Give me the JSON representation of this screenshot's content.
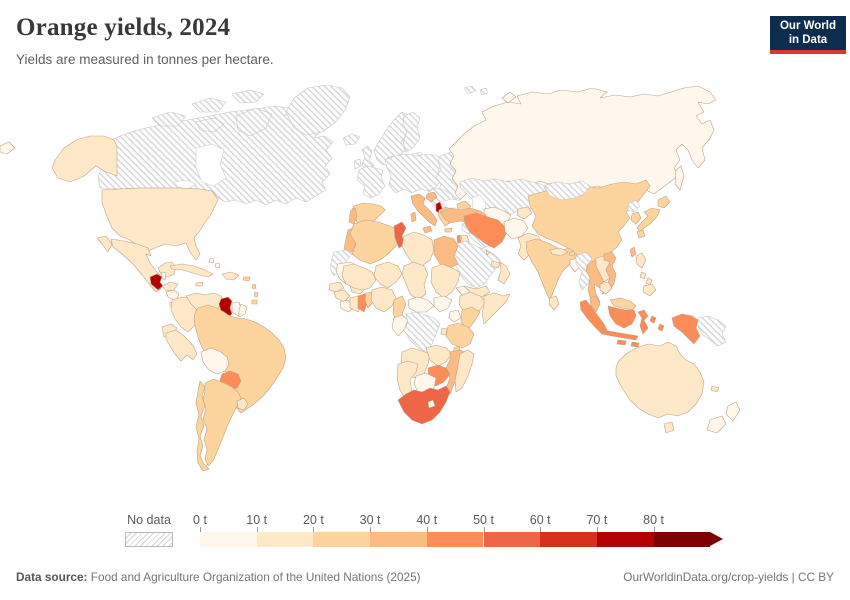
{
  "header": {
    "title": "Orange yields, 2024",
    "subtitle": "Yields are measured in tonnes per hectare."
  },
  "logo": {
    "line1": "Our World",
    "line2": "in Data",
    "bg_color": "#0d2d4e",
    "accent_color": "#e0362c"
  },
  "legend": {
    "no_data_label": "No data"
  },
  "footer": {
    "source_label": "Data source:",
    "source_text": " Food and Agriculture Organization of the United Nations (2025)",
    "link_text": "OurWorldinData.org/crop-yields",
    "license_separator": " | ",
    "license_text": "CC BY"
  },
  "chart_data": {
    "type": "choropleth-map",
    "title": "Orange yields, 2024",
    "unit": "tonnes per hectare",
    "projection": "world",
    "no_data_style": "gray-diagonal-hatch",
    "bins": [
      {
        "label": "0 t",
        "range": "0-10",
        "color": "#fff7ec"
      },
      {
        "label": "10 t",
        "range": "10-20",
        "color": "#fee8c8"
      },
      {
        "label": "20 t",
        "range": "20-30",
        "color": "#fdd49e"
      },
      {
        "label": "30 t",
        "range": "30-40",
        "color": "#fdbb84"
      },
      {
        "label": "40 t",
        "range": "40-50",
        "color": "#fc8d59"
      },
      {
        "label": "50 t",
        "range": "50-60",
        "color": "#ef6548"
      },
      {
        "label": "60 t",
        "range": "60-70",
        "color": "#d7301f"
      },
      {
        "label": "70 t",
        "range": "70-80",
        "color": "#b30000"
      },
      {
        "label": "80 t",
        "range": "80+",
        "color": "#7f0000"
      }
    ],
    "countries": [
      {
        "id": "canada",
        "bin": "no-data"
      },
      {
        "id": "hudson-bay",
        "bin": "water"
      },
      {
        "id": "great-lakes",
        "bin": "water"
      },
      {
        "id": "arctic-1",
        "bin": "no-data"
      },
      {
        "id": "arctic-2",
        "bin": "no-data"
      },
      {
        "id": "arctic-3",
        "bin": "no-data"
      },
      {
        "id": "victoria-island",
        "bin": "no-data"
      },
      {
        "id": "baffin-island",
        "bin": "no-data"
      },
      {
        "id": "greenland",
        "bin": "no-data"
      },
      {
        "id": "iceland",
        "bin": "no-data"
      },
      {
        "id": "alaska",
        "bin": 1
      },
      {
        "id": "united-states",
        "bin": 1
      },
      {
        "id": "mexico",
        "bin": 1
      },
      {
        "id": "guatemala",
        "bin": 7
      },
      {
        "id": "belize",
        "bin": 0
      },
      {
        "id": "honduras",
        "bin": 1
      },
      {
        "id": "nicaragua",
        "bin": 0
      },
      {
        "id": "costa-rica-panama",
        "bin": 0
      },
      {
        "id": "cuba",
        "bin": 1
      },
      {
        "id": "jamaica",
        "bin": 1
      },
      {
        "id": "hispaniola",
        "bin": 1
      },
      {
        "id": "puerto-rico",
        "bin": 2
      },
      {
        "id": "lesser-antilles-1",
        "bin": 2
      },
      {
        "id": "lesser-antilles-2",
        "bin": 2
      },
      {
        "id": "trinidad",
        "bin": 2
      },
      {
        "id": "bahamas-1",
        "bin": 0
      },
      {
        "id": "bahamas-2",
        "bin": 0
      },
      {
        "id": "colombia",
        "bin": 1
      },
      {
        "id": "venezuela",
        "bin": 1
      },
      {
        "id": "guyana",
        "bin": 7
      },
      {
        "id": "suriname",
        "bin": 0
      },
      {
        "id": "french-guiana",
        "bin": 0
      },
      {
        "id": "ecuador",
        "bin": 1
      },
      {
        "id": "peru",
        "bin": 1
      },
      {
        "id": "brazil",
        "bin": 2
      },
      {
        "id": "bolivia",
        "bin": 0
      },
      {
        "id": "paraguay",
        "bin": 4
      },
      {
        "id": "chile",
        "bin": 2
      },
      {
        "id": "argentina",
        "bin": 2
      },
      {
        "id": "uruguay",
        "bin": 1
      },
      {
        "id": "united-kingdom",
        "bin": "no-data"
      },
      {
        "id": "ireland",
        "bin": "no-data"
      },
      {
        "id": "norway-sweden",
        "bin": "no-data"
      },
      {
        "id": "finland",
        "bin": "no-data"
      },
      {
        "id": "denmark",
        "bin": "no-data"
      },
      {
        "id": "baltics",
        "bin": "no-data"
      },
      {
        "id": "france",
        "bin": "no-data"
      },
      {
        "id": "central-europe",
        "bin": "no-data"
      },
      {
        "id": "ukraine-belarus",
        "bin": "no-data"
      },
      {
        "id": "balkans",
        "bin": "no-data"
      },
      {
        "id": "spain",
        "bin": 2
      },
      {
        "id": "portugal",
        "bin": 3
      },
      {
        "id": "italy",
        "bin": 3
      },
      {
        "id": "sicily",
        "bin": 3
      },
      {
        "id": "sardinia",
        "bin": 3
      },
      {
        "id": "croatia",
        "bin": 3
      },
      {
        "id": "albania",
        "bin": 7
      },
      {
        "id": "greece",
        "bin": 2
      },
      {
        "id": "crete",
        "bin": 2
      },
      {
        "id": "svalbard-1",
        "bin": "no-data"
      },
      {
        "id": "svalbard-2",
        "bin": "no-data"
      },
      {
        "id": "russia",
        "bin": 0
      },
      {
        "id": "siberia-left-fragment",
        "bin": 0
      },
      {
        "id": "novaya-zemlya",
        "bin": 0
      },
      {
        "id": "sakhalin",
        "bin": 0
      },
      {
        "id": "kazakhstan-uzbekistan",
        "bin": "no-data"
      },
      {
        "id": "caspian-sea",
        "bin": "water"
      },
      {
        "id": "black-sea",
        "bin": "water"
      },
      {
        "id": "turkmenistan",
        "bin": 0
      },
      {
        "id": "kyrgyzstan-tajikistan",
        "bin": 1
      },
      {
        "id": "caucasus",
        "bin": 2
      },
      {
        "id": "turkey",
        "bin": 3
      },
      {
        "id": "syria",
        "bin": "no-data"
      },
      {
        "id": "iraq",
        "bin": "no-data"
      },
      {
        "id": "israel",
        "bin": 4
      },
      {
        "id": "jordan",
        "bin": 1
      },
      {
        "id": "saudi-arabia",
        "bin": "no-data"
      },
      {
        "id": "kuwait",
        "bin": 1
      },
      {
        "id": "uae-qatar",
        "bin": 1
      },
      {
        "id": "oman",
        "bin": 1
      },
      {
        "id": "yemen",
        "bin": 1
      },
      {
        "id": "iran",
        "bin": 4
      },
      {
        "id": "afghanistan",
        "bin": 0
      },
      {
        "id": "pakistan",
        "bin": 1
      },
      {
        "id": "india",
        "bin": 2
      },
      {
        "id": "nepal",
        "bin": 1
      },
      {
        "id": "bhutan",
        "bin": 2
      },
      {
        "id": "bangladesh",
        "bin": 0
      },
      {
        "id": "sri-lanka",
        "bin": 1
      },
      {
        "id": "china",
        "bin": 2
      },
      {
        "id": "mongolia",
        "bin": "no-data"
      },
      {
        "id": "north-korea",
        "bin": "no-data"
      },
      {
        "id": "south-korea",
        "bin": 2
      },
      {
        "id": "japan-hokkaido",
        "bin": 2
      },
      {
        "id": "japan-honshu",
        "bin": 2
      },
      {
        "id": "japan-kyushu",
        "bin": 2
      },
      {
        "id": "taiwan",
        "bin": 3
      },
      {
        "id": "hainan",
        "bin": 2
      },
      {
        "id": "myanmar",
        "bin": "no-data"
      },
      {
        "id": "thailand",
        "bin": 3
      },
      {
        "id": "laos",
        "bin": 1
      },
      {
        "id": "vietnam",
        "bin": 3
      },
      {
        "id": "cambodia",
        "bin": 1
      },
      {
        "id": "malaysia-peninsula",
        "bin": 3
      },
      {
        "id": "sumatra",
        "bin": 4
      },
      {
        "id": "java",
        "bin": 4
      },
      {
        "id": "borneo-malaysia",
        "bin": 2
      },
      {
        "id": "borneo-indonesia",
        "bin": 4
      },
      {
        "id": "sulawesi",
        "bin": 4
      },
      {
        "id": "moluccas-1",
        "bin": 4
      },
      {
        "id": "moluccas-2",
        "bin": 4
      },
      {
        "id": "lesser-sunda-1",
        "bin": 4
      },
      {
        "id": "lesser-sunda-2",
        "bin": 4
      },
      {
        "id": "west-papua",
        "bin": 4
      },
      {
        "id": "papua-new-guinea",
        "bin": "no-data"
      },
      {
        "id": "philippines-luzon",
        "bin": 1
      },
      {
        "id": "philippines-visayas-1",
        "bin": 1
      },
      {
        "id": "philippines-visayas-2",
        "bin": 1
      },
      {
        "id": "philippines-mindanao",
        "bin": 1
      },
      {
        "id": "morocco",
        "bin": 3
      },
      {
        "id": "western-sahara",
        "bin": "no-data"
      },
      {
        "id": "mauritania",
        "bin": 0
      },
      {
        "id": "senegal",
        "bin": 1
      },
      {
        "id": "guinea",
        "bin": 1
      },
      {
        "id": "sierra-leone-liberia",
        "bin": 0
      },
      {
        "id": "ivory-coast",
        "bin": 1
      },
      {
        "id": "ghana",
        "bin": 4
      },
      {
        "id": "togo-benin",
        "bin": 2
      },
      {
        "id": "burkina-faso",
        "bin": 1
      },
      {
        "id": "mali",
        "bin": 1
      },
      {
        "id": "algeria",
        "bin": 2
      },
      {
        "id": "tunisia",
        "bin": 5
      },
      {
        "id": "libya",
        "bin": 1
      },
      {
        "id": "egypt",
        "bin": 3
      },
      {
        "id": "niger",
        "bin": 1
      },
      {
        "id": "chad",
        "bin": 1
      },
      {
        "id": "sudan",
        "bin": 1
      },
      {
        "id": "eritrea",
        "bin": 0
      },
      {
        "id": "ethiopia",
        "bin": 1
      },
      {
        "id": "somalia",
        "bin": 1
      },
      {
        "id": "nigeria",
        "bin": 1
      },
      {
        "id": "cameroon",
        "bin": 2
      },
      {
        "id": "central-african-republic",
        "bin": 0
      },
      {
        "id": "south-sudan",
        "bin": 0
      },
      {
        "id": "uganda",
        "bin": 0
      },
      {
        "id": "kenya",
        "bin": 2
      },
      {
        "id": "gabon-congo",
        "bin": 0
      },
      {
        "id": "dr-congo",
        "bin": "no-data"
      },
      {
        "id": "rwanda-burundi",
        "bin": 1
      },
      {
        "id": "tanzania",
        "bin": 2
      },
      {
        "id": "angola",
        "bin": 1
      },
      {
        "id": "zambia",
        "bin": 1
      },
      {
        "id": "malawi",
        "bin": 2
      },
      {
        "id": "mozambique",
        "bin": 3
      },
      {
        "id": "zimbabwe",
        "bin": 4
      },
      {
        "id": "botswana",
        "bin": 0
      },
      {
        "id": "namibia",
        "bin": 1
      },
      {
        "id": "south-africa",
        "bin": 5
      },
      {
        "id": "lesotho",
        "bin": 0
      },
      {
        "id": "madagascar",
        "bin": 1
      },
      {
        "id": "australia",
        "bin": 1
      },
      {
        "id": "tasmania",
        "bin": 1
      },
      {
        "id": "new-zealand-north",
        "bin": 0
      },
      {
        "id": "new-zealand-south",
        "bin": 0
      },
      {
        "id": "new-caledonia",
        "bin": 1
      }
    ]
  }
}
